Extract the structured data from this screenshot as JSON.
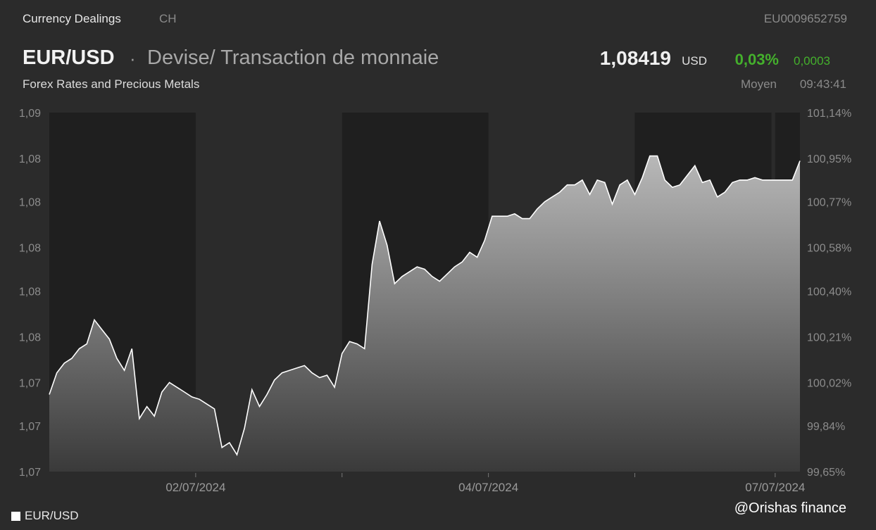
{
  "header": {
    "section": "Currency Dealings",
    "market": "CH",
    "isin": "EU0009652759",
    "pair": "EUR/USD",
    "separator": "·",
    "description": "Devise/ Transaction de monnaie",
    "subtitle": "Forex Rates and Precious Metals",
    "price": "1,08419",
    "currency": "USD",
    "change_pct": "0,03%",
    "change_abs": "0,0003",
    "price_mode": "Moyen",
    "time": "09:43:41"
  },
  "colors": {
    "background": "#2b2b2b",
    "session_band": "#1f1f1f",
    "line": "#ffffff",
    "positive": "#44b02c"
  },
  "legend": {
    "label": "EUR/USD"
  },
  "watermark": "@Orishas finance",
  "chart_data": {
    "type": "area",
    "series": [
      {
        "name": "EUR/USD",
        "x": [
          0,
          1,
          2,
          3,
          4,
          5,
          6,
          7,
          8,
          9,
          10,
          11,
          12,
          13,
          14,
          15,
          16,
          17,
          18,
          19,
          20,
          21,
          22,
          23,
          24,
          25,
          26,
          27,
          28,
          29,
          30,
          31,
          32,
          33,
          34,
          35,
          36,
          37,
          38,
          39,
          40,
          41,
          42,
          43,
          44,
          45,
          46,
          47,
          48,
          49,
          50,
          51,
          52,
          53,
          54,
          55,
          56,
          57,
          58,
          59,
          60,
          61,
          62,
          63,
          64,
          65,
          66,
          67,
          68,
          69,
          70,
          71,
          72,
          73,
          74,
          75,
          76,
          77,
          78,
          79,
          80,
          81,
          82,
          83,
          84,
          85,
          86,
          87,
          88,
          89,
          90,
          91,
          92,
          93,
          94,
          95,
          96,
          97,
          98,
          99,
          100
        ],
        "values": [
          99.97,
          100.06,
          100.1,
          100.12,
          100.16,
          100.18,
          100.28,
          100.24,
          100.2,
          100.12,
          100.07,
          100.16,
          99.87,
          99.92,
          99.88,
          99.98,
          100.02,
          100.0,
          99.98,
          99.96,
          99.95,
          99.93,
          99.91,
          99.75,
          99.77,
          99.72,
          99.83,
          99.99,
          99.92,
          99.97,
          100.03,
          100.06,
          100.07,
          100.08,
          100.09,
          100.06,
          100.04,
          100.05,
          100.0,
          100.14,
          100.19,
          100.18,
          100.16,
          100.51,
          100.69,
          100.59,
          100.43,
          100.46,
          100.48,
          100.5,
          100.49,
          100.46,
          100.44,
          100.47,
          100.5,
          100.52,
          100.56,
          100.54,
          100.61,
          100.71,
          100.71,
          100.71,
          100.72,
          100.7,
          100.7,
          100.74,
          100.77,
          100.79,
          100.81,
          100.84,
          100.84,
          100.86,
          100.8,
          100.86,
          100.85,
          100.76,
          100.84,
          100.86,
          100.8,
          100.87,
          100.96,
          100.96,
          100.86,
          100.83,
          100.84,
          100.88,
          100.92,
          100.85,
          100.86,
          100.79,
          100.81,
          100.85,
          100.86,
          100.86,
          100.87,
          100.86,
          100.86,
          100.86,
          100.86,
          100.86,
          100.94
        ]
      }
    ],
    "y_left_ticks": [
      "1,09",
      "1,08",
      "1,08",
      "1,08",
      "1,08",
      "1,08",
      "1,07",
      "1,07",
      "1,07"
    ],
    "y_right_ticks": [
      "101,14%",
      "100,95%",
      "100,77%",
      "100,58%",
      "100,40%",
      "100,21%",
      "100,02%",
      "99,84%",
      "99,65%"
    ],
    "y_right_values": [
      101.14,
      100.95,
      100.77,
      100.58,
      100.4,
      100.21,
      100.02,
      99.84,
      99.65
    ],
    "ylim": [
      99.65,
      101.14
    ],
    "x_ticks": [
      {
        "label": "02/07/2024",
        "x": 19.5
      },
      {
        "label": "04/07/2024",
        "x": 58.5
      },
      {
        "label": "07/07/2024",
        "x": 96.7
      }
    ],
    "session_bands": [
      [
        0,
        19.5
      ],
      [
        39,
        58.5
      ],
      [
        78,
        96.2
      ],
      [
        96.7,
        100
      ]
    ],
    "grid": false
  }
}
